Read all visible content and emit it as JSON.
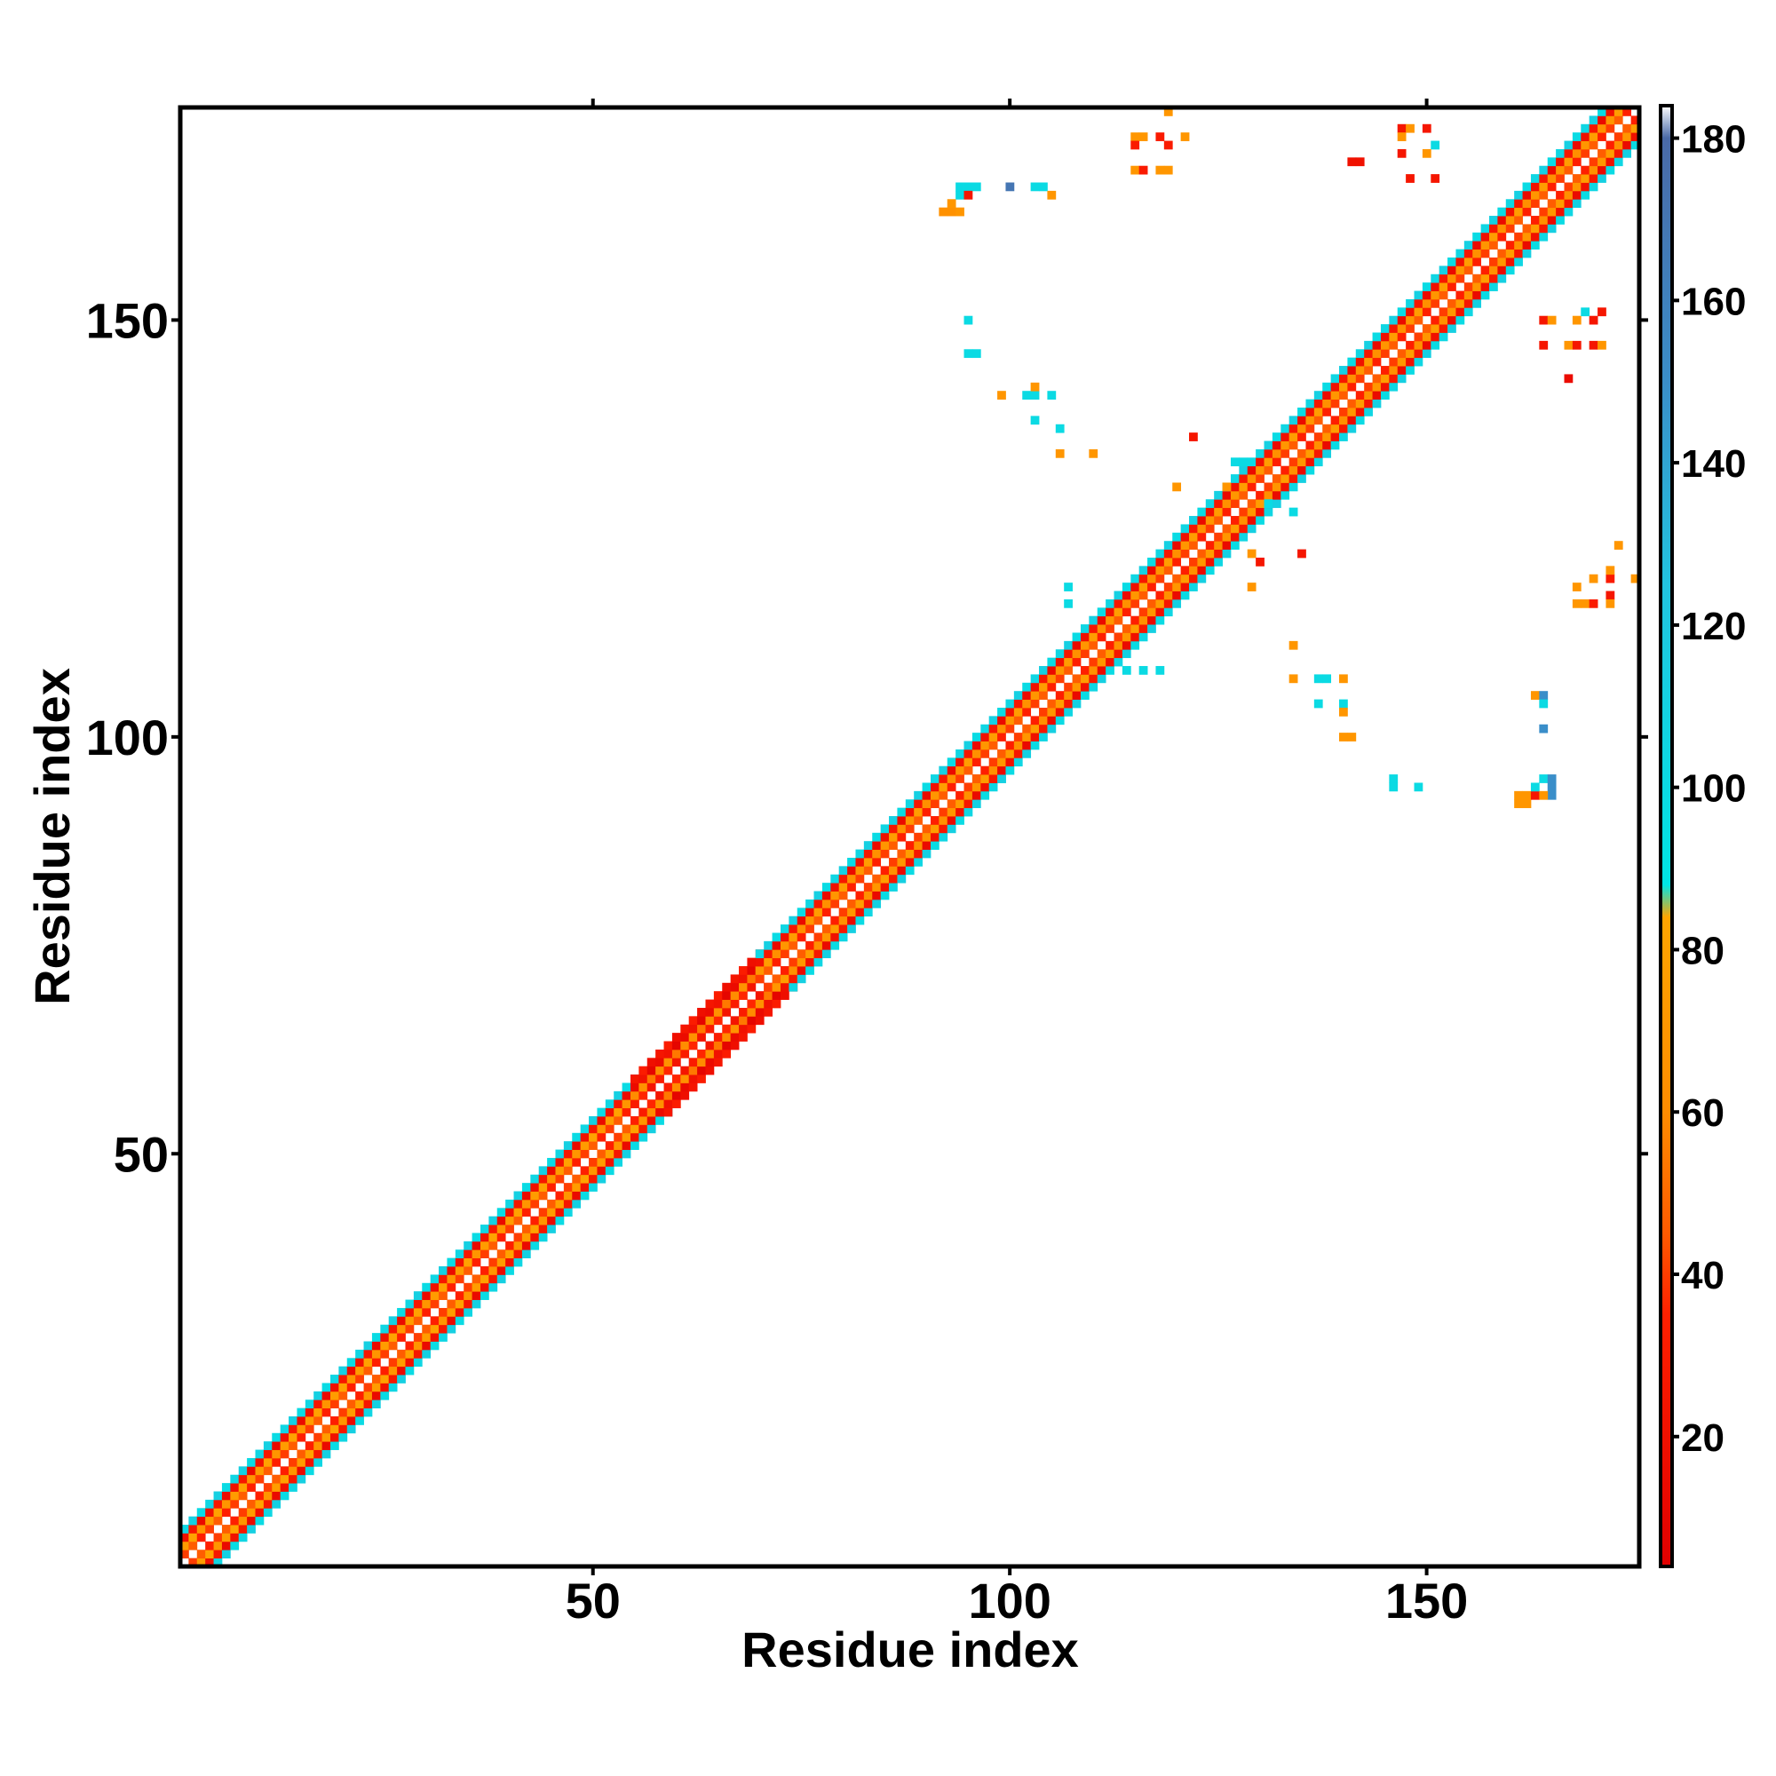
{
  "chart_data": {
    "type": "heatmap",
    "title": "",
    "xlabel": "Residue index",
    "ylabel": "Residue index",
    "xlim": [
      0.5,
      175.5
    ],
    "ylim": [
      0.5,
      175.5
    ],
    "x_ticks": [
      50,
      100,
      150
    ],
    "y_ticks": [
      50,
      100,
      150
    ],
    "colorbar": {
      "range": [
        4,
        184
      ],
      "ticks": [
        20,
        40,
        60,
        80,
        100,
        120,
        140,
        160,
        180
      ],
      "stops": [
        {
          "value": 4,
          "color": "#e00000"
        },
        {
          "value": 35,
          "color": "#ff2000"
        },
        {
          "value": 45,
          "color": "#ff5a00"
        },
        {
          "value": 60,
          "color": "#ff8c00"
        },
        {
          "value": 84,
          "color": "#ffa500"
        },
        {
          "value": 88,
          "color": "#00e5e5"
        },
        {
          "value": 125,
          "color": "#22c4e0"
        },
        {
          "value": 150,
          "color": "#3a8ec9"
        },
        {
          "value": 180,
          "color": "#4a6aa8"
        },
        {
          "value": 184,
          "color": "#ffffff"
        }
      ]
    },
    "diagonal_band": {
      "description_values": "cells with |i-j| from 1 to 4 filled; value ~ angle-like quantity per residue pair",
      "segments": [
        {
          "start": 1,
          "end": 55,
          "offsets": {
            "1": 40,
            "2": 75,
            "3": 20,
            "4": 105
          }
        },
        {
          "start": 55,
          "end": 70,
          "offsets": {
            "1": 30,
            "2": 60,
            "3": 15,
            "4": 25
          }
        },
        {
          "start": 70,
          "end": 95,
          "offsets": {
            "1": 40,
            "2": 70,
            "3": 20,
            "4": 105
          }
        },
        {
          "start": 95,
          "end": 175,
          "offsets": {
            "1": 40,
            "2": 70,
            "3": 20,
            "4": 105
          }
        }
      ]
    },
    "offdiagonal_contacts": [
      {
        "x": 92,
        "y": 163,
        "v": 65
      },
      {
        "x": 93,
        "y": 163,
        "v": 65
      },
      {
        "x": 94,
        "y": 163,
        "v": 70
      },
      {
        "x": 93,
        "y": 164,
        "v": 70
      },
      {
        "x": 94,
        "y": 165,
        "v": 100
      },
      {
        "x": 95,
        "y": 166,
        "v": 100
      },
      {
        "x": 94,
        "y": 166,
        "v": 100
      },
      {
        "x": 95,
        "y": 165,
        "v": 25
      },
      {
        "x": 96,
        "y": 166,
        "v": 100
      },
      {
        "x": 100,
        "y": 166,
        "v": 170
      },
      {
        "x": 103,
        "y": 166,
        "v": 100
      },
      {
        "x": 104,
        "y": 166,
        "v": 100
      },
      {
        "x": 105,
        "y": 165,
        "v": 70
      },
      {
        "x": 95,
        "y": 150,
        "v": 100
      },
      {
        "x": 95,
        "y": 146,
        "v": 100
      },
      {
        "x": 96,
        "y": 146,
        "v": 100
      },
      {
        "x": 99,
        "y": 141,
        "v": 70
      },
      {
        "x": 102,
        "y": 141,
        "v": 100
      },
      {
        "x": 103,
        "y": 141,
        "v": 100
      },
      {
        "x": 103,
        "y": 142,
        "v": 70
      },
      {
        "x": 105,
        "y": 141,
        "v": 100
      },
      {
        "x": 103,
        "y": 138,
        "v": 100
      },
      {
        "x": 106,
        "y": 137,
        "v": 100
      },
      {
        "x": 106,
        "y": 134,
        "v": 70
      },
      {
        "x": 110,
        "y": 134,
        "v": 70
      },
      {
        "x": 115,
        "y": 172,
        "v": 70
      },
      {
        "x": 115,
        "y": 171,
        "v": 30
      },
      {
        "x": 116,
        "y": 172,
        "v": 70
      },
      {
        "x": 118,
        "y": 172,
        "v": 30
      },
      {
        "x": 119,
        "y": 171,
        "v": 30
      },
      {
        "x": 119,
        "y": 175,
        "v": 70
      },
      {
        "x": 121,
        "y": 172,
        "v": 70
      },
      {
        "x": 115,
        "y": 168,
        "v": 70
      },
      {
        "x": 116,
        "y": 168,
        "v": 30
      },
      {
        "x": 118,
        "y": 168,
        "v": 70
      },
      {
        "x": 119,
        "y": 168,
        "v": 70
      },
      {
        "x": 141,
        "y": 169,
        "v": 20
      },
      {
        "x": 142,
        "y": 169,
        "v": 20
      },
      {
        "x": 147,
        "y": 173,
        "v": 25
      },
      {
        "x": 148,
        "y": 173,
        "v": 70
      },
      {
        "x": 147,
        "y": 172,
        "v": 70
      },
      {
        "x": 150,
        "y": 173,
        "v": 25
      },
      {
        "x": 151,
        "y": 171,
        "v": 100
      },
      {
        "x": 147,
        "y": 170,
        "v": 25
      },
      {
        "x": 150,
        "y": 170,
        "v": 70
      },
      {
        "x": 148,
        "y": 167,
        "v": 25
      },
      {
        "x": 151,
        "y": 167,
        "v": 25
      },
      {
        "x": 164,
        "y": 150,
        "v": 25
      },
      {
        "x": 165,
        "y": 150,
        "v": 70
      },
      {
        "x": 168,
        "y": 150,
        "v": 70
      },
      {
        "x": 170,
        "y": 150,
        "v": 25
      },
      {
        "x": 171,
        "y": 151,
        "v": 25
      },
      {
        "x": 169,
        "y": 151,
        "v": 100
      },
      {
        "x": 164,
        "y": 147,
        "v": 25
      },
      {
        "x": 167,
        "y": 147,
        "v": 70
      },
      {
        "x": 168,
        "y": 147,
        "v": 25
      },
      {
        "x": 170,
        "y": 147,
        "v": 25
      },
      {
        "x": 171,
        "y": 147,
        "v": 70
      },
      {
        "x": 167,
        "y": 143,
        "v": 15
      },
      {
        "x": 120,
        "y": 130,
        "v": 70
      },
      {
        "x": 122,
        "y": 136,
        "v": 25
      },
      {
        "x": 127,
        "y": 133,
        "v": 100
      },
      {
        "x": 128,
        "y": 133,
        "v": 100
      },
      {
        "x": 126,
        "y": 130,
        "v": 70
      },
      {
        "x": 131,
        "y": 128,
        "v": 100
      },
      {
        "x": 134,
        "y": 127,
        "v": 100
      },
      {
        "x": 135,
        "y": 122,
        "v": 25
      },
      {
        "x": 129,
        "y": 122,
        "v": 70
      },
      {
        "x": 130,
        "y": 121,
        "v": 25
      },
      {
        "x": 129,
        "y": 118,
        "v": 70
      },
      {
        "x": 107,
        "y": 118,
        "v": 100
      },
      {
        "x": 107,
        "y": 116,
        "v": 100
      },
      {
        "x": 114,
        "y": 108,
        "v": 100
      },
      {
        "x": 116,
        "y": 108,
        "v": 100
      },
      {
        "x": 118,
        "y": 108,
        "v": 100
      },
      {
        "x": 134,
        "y": 111,
        "v": 70
      },
      {
        "x": 134,
        "y": 107,
        "v": 70
      },
      {
        "x": 137,
        "y": 107,
        "v": 100
      },
      {
        "x": 138,
        "y": 107,
        "v": 100
      },
      {
        "x": 140,
        "y": 107,
        "v": 70
      },
      {
        "x": 137,
        "y": 104,
        "v": 100
      },
      {
        "x": 140,
        "y": 104,
        "v": 100
      },
      {
        "x": 140,
        "y": 103,
        "v": 70
      },
      {
        "x": 140,
        "y": 100,
        "v": 70
      },
      {
        "x": 141,
        "y": 100,
        "v": 70
      },
      {
        "x": 146,
        "y": 95,
        "v": 100
      },
      {
        "x": 146,
        "y": 94,
        "v": 100
      },
      {
        "x": 149,
        "y": 94,
        "v": 100
      },
      {
        "x": 163,
        "y": 105,
        "v": 70
      },
      {
        "x": 164,
        "y": 105,
        "v": 150
      },
      {
        "x": 164,
        "y": 104,
        "v": 100
      },
      {
        "x": 164,
        "y": 101,
        "v": 150
      },
      {
        "x": 161,
        "y": 93,
        "v": 70
      },
      {
        "x": 161,
        "y": 92,
        "v": 70
      },
      {
        "x": 162,
        "y": 93,
        "v": 70
      },
      {
        "x": 162,
        "y": 92,
        "v": 70
      },
      {
        "x": 163,
        "y": 93,
        "v": 25
      },
      {
        "x": 163,
        "y": 94,
        "v": 100
      },
      {
        "x": 164,
        "y": 95,
        "v": 100
      },
      {
        "x": 165,
        "y": 95,
        "v": 150
      },
      {
        "x": 165,
        "y": 94,
        "v": 150
      },
      {
        "x": 165,
        "y": 93,
        "v": 150
      },
      {
        "x": 164,
        "y": 93,
        "v": 70
      },
      {
        "x": 168,
        "y": 118,
        "v": 70
      },
      {
        "x": 168,
        "y": 116,
        "v": 70
      },
      {
        "x": 169,
        "y": 116,
        "v": 70
      },
      {
        "x": 170,
        "y": 116,
        "v": 30
      },
      {
        "x": 170,
        "y": 119,
        "v": 70
      },
      {
        "x": 172,
        "y": 119,
        "v": 30
      },
      {
        "x": 172,
        "y": 120,
        "v": 70
      },
      {
        "x": 172,
        "y": 117,
        "v": 25
      },
      {
        "x": 172,
        "y": 116,
        "v": 70
      },
      {
        "x": 175,
        "y": 119,
        "v": 70
      },
      {
        "x": 173,
        "y": 123,
        "v": 70
      }
    ]
  }
}
